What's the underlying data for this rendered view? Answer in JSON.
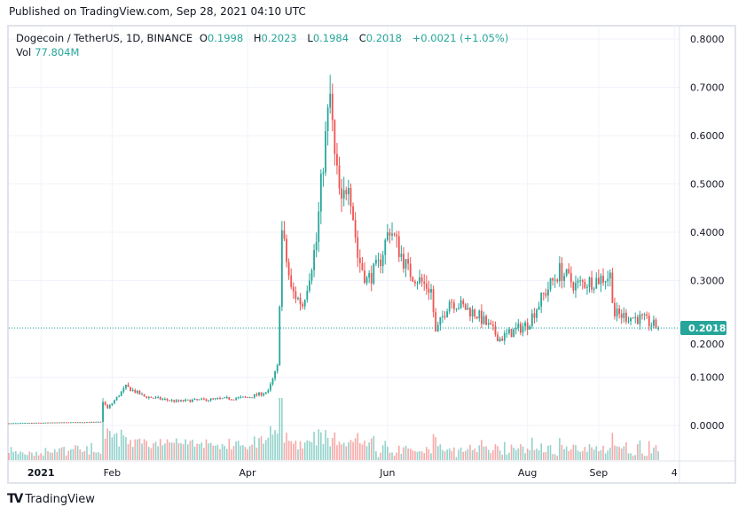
{
  "published": "Published on TradingView.com, Sep 28, 2021 04:10 UTC",
  "legend": {
    "symbol": "Dogecoin / TetherUS, 1D, BINANCE",
    "o_label": "O",
    "o": "0.1998",
    "h_label": "H",
    "h": "0.2023",
    "l_label": "L",
    "l": "0.1984",
    "c_label": "C",
    "c": "0.2018",
    "change": "+0.0021 (+1.05%)",
    "vol_label": "Vol",
    "vol": "77.804M"
  },
  "colors": {
    "up": "#26a69a",
    "down": "#ef5350",
    "last": "#26a69a"
  },
  "logo": "TradingView",
  "chart_data": {
    "type": "candlestick",
    "last_price_label": "0.2018",
    "y_ticks": [
      "0.8000",
      "0.7000",
      "0.6000",
      "0.5000",
      "0.4000",
      "0.3000",
      "0.2000",
      "0.1000",
      "0.0000"
    ],
    "ylim": [
      0,
      0.8
    ],
    "x_ticks": [
      {
        "label": "2021",
        "date": "2021-01-01"
      },
      {
        "label": "Feb",
        "date": "2021-02-01"
      },
      {
        "label": "Apr",
        "date": "2021-04-01"
      },
      {
        "label": "Jun",
        "date": "2021-06-01"
      },
      {
        "label": "Aug",
        "date": "2021-08-01"
      },
      {
        "label": "Sep",
        "date": "2021-09-01"
      },
      {
        "label": "4",
        "date": "2021-10-04"
      }
    ],
    "start_date": "2020-12-18",
    "close_keypoints": [
      [
        "2020-12-18",
        0.0046
      ],
      [
        "2021-01-27",
        0.0075
      ],
      [
        "2021-01-28",
        0.05
      ],
      [
        "2021-01-30",
        0.035
      ],
      [
        "2021-02-07",
        0.08
      ],
      [
        "2021-02-15",
        0.06
      ],
      [
        "2021-03-01",
        0.05
      ],
      [
        "2021-04-01",
        0.058
      ],
      [
        "2021-04-10",
        0.07
      ],
      [
        "2021-04-14",
        0.12
      ],
      [
        "2021-04-16",
        0.4
      ],
      [
        "2021-04-20",
        0.28
      ],
      [
        "2021-04-25",
        0.25
      ],
      [
        "2021-05-01",
        0.38
      ],
      [
        "2021-05-04",
        0.55
      ],
      [
        "2021-05-07",
        0.68
      ],
      [
        "2021-05-09",
        0.55
      ],
      [
        "2021-05-12",
        0.45
      ],
      [
        "2021-05-15",
        0.52
      ],
      [
        "2021-05-19",
        0.35
      ],
      [
        "2021-05-23",
        0.3
      ],
      [
        "2021-05-28",
        0.33
      ],
      [
        "2021-06-02",
        0.41
      ],
      [
        "2021-06-10",
        0.32
      ],
      [
        "2021-06-20",
        0.28
      ],
      [
        "2021-06-22",
        0.19
      ],
      [
        "2021-06-28",
        0.26
      ],
      [
        "2021-07-10",
        0.23
      ],
      [
        "2021-07-20",
        0.18
      ],
      [
        "2021-08-01",
        0.21
      ],
      [
        "2021-08-08",
        0.27
      ],
      [
        "2021-08-15",
        0.32
      ],
      [
        "2021-08-22",
        0.29
      ],
      [
        "2021-09-06",
        0.31
      ],
      [
        "2021-09-08",
        0.23
      ],
      [
        "2021-09-20",
        0.22
      ],
      [
        "2021-09-27",
        0.2018
      ]
    ]
  }
}
